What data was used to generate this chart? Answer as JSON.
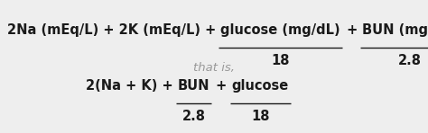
{
  "bg_color": "#eeeeee",
  "text_color": "#1a1a1a",
  "italic_color": "#999999",
  "figsize": [
    4.74,
    1.48
  ],
  "dpi": 100,
  "fs_main": 10.5,
  "fs_italic": 9.5,
  "line_lw": 1.0,
  "formula1": {
    "prefix": "2Na (mEq/L) + 2K (mEq/L) + ",
    "frac1_num": "glucose (mg/dL)",
    "frac1_den": "18",
    "plus": " + ",
    "frac2_num": "BUN (mg/dL)",
    "frac2_den": "2.8"
  },
  "that_is": "that is,",
  "formula2": {
    "prefix": "2(Na + K) + ",
    "frac1_num": "BUN",
    "frac1_den": "2.8",
    "plus": " + ",
    "frac2_num": "glucose",
    "frac2_den": "18"
  }
}
